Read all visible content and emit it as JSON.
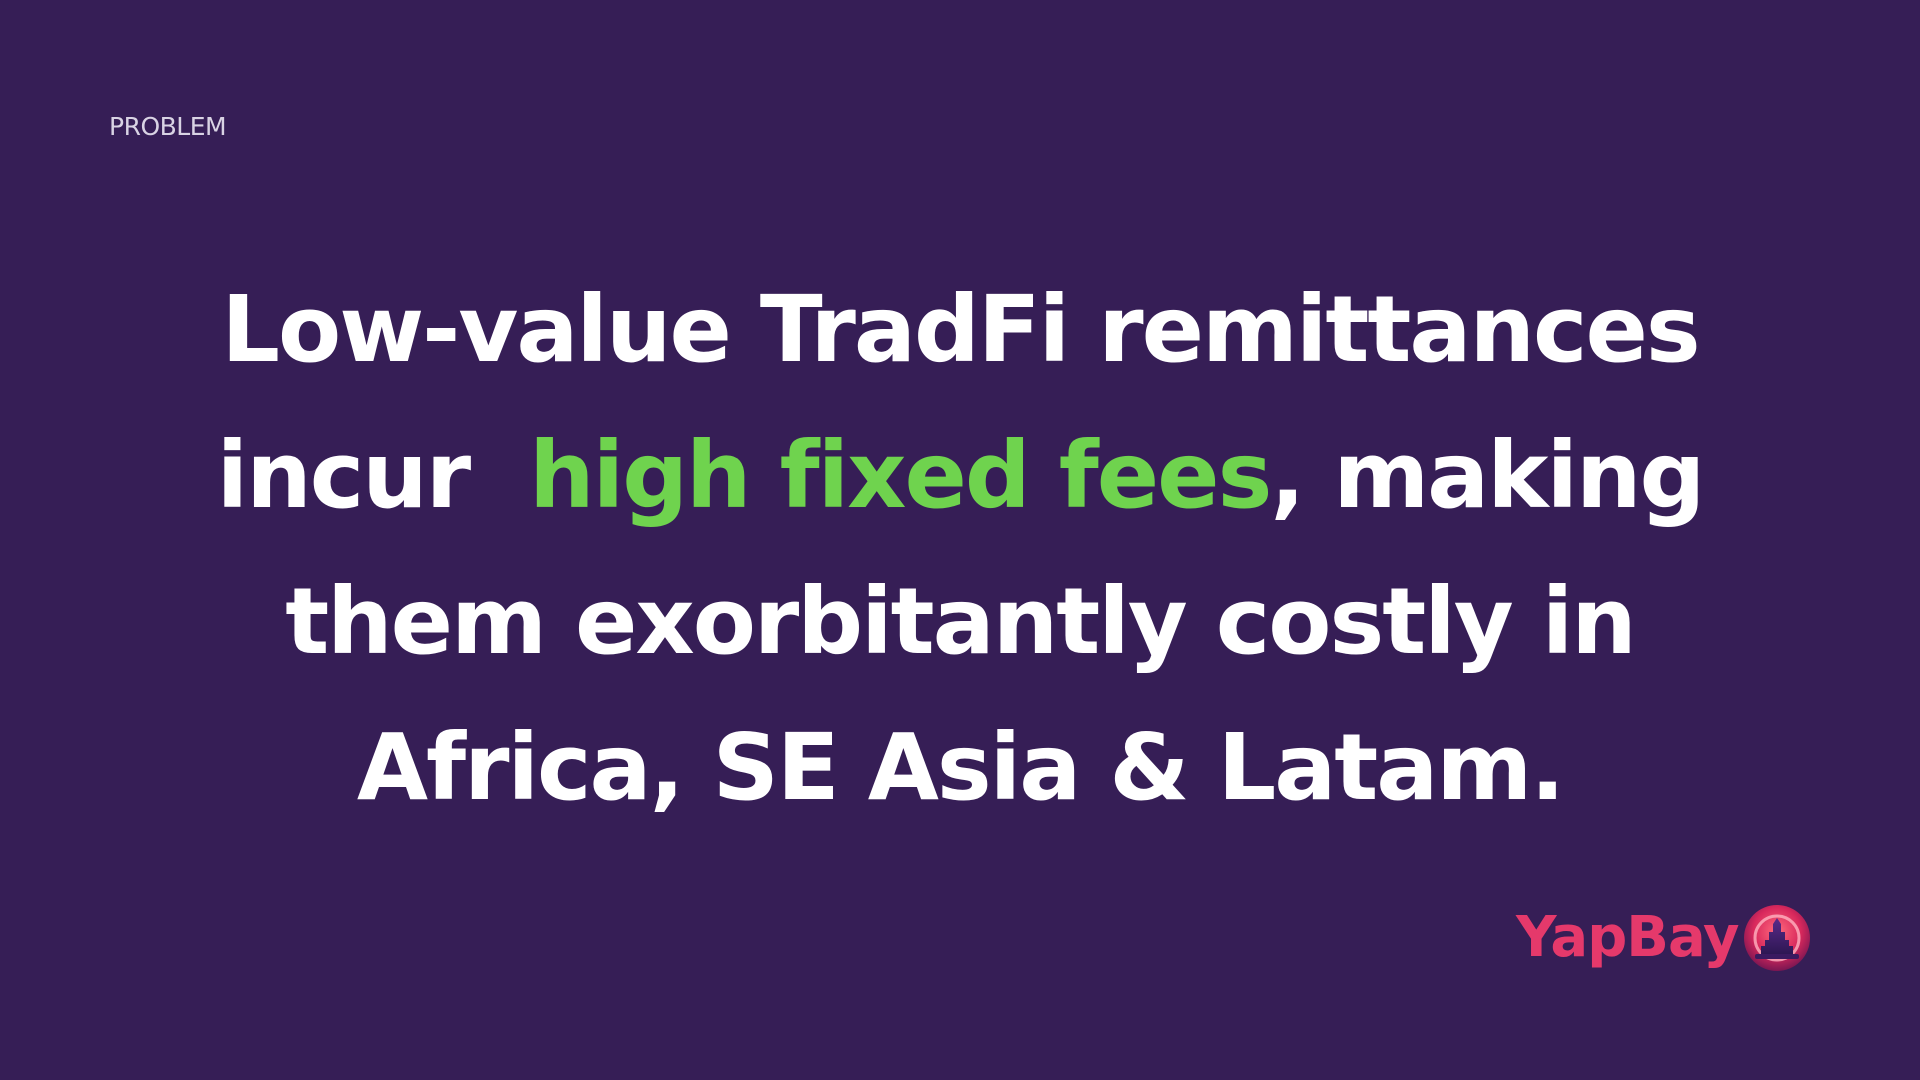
{
  "slide": {
    "section_label": "PROBLEM",
    "headline": {
      "line1": "Low-value TradFi remittances",
      "line2_before": "incur  ",
      "line2_highlight": "high fixed fees",
      "line2_after": ", making",
      "line3": "them exorbitantly costly in",
      "line4": "Africa, SE Asia & Latam."
    },
    "brand": {
      "name": "YapBay",
      "logo_icon": "yapbay-logo-icon"
    }
  },
  "colors": {
    "background": "#361e56",
    "headline_text": "#ffffff",
    "highlight": "#6fd34e",
    "brand": "#e5396b",
    "label": "#d9d3e4"
  }
}
